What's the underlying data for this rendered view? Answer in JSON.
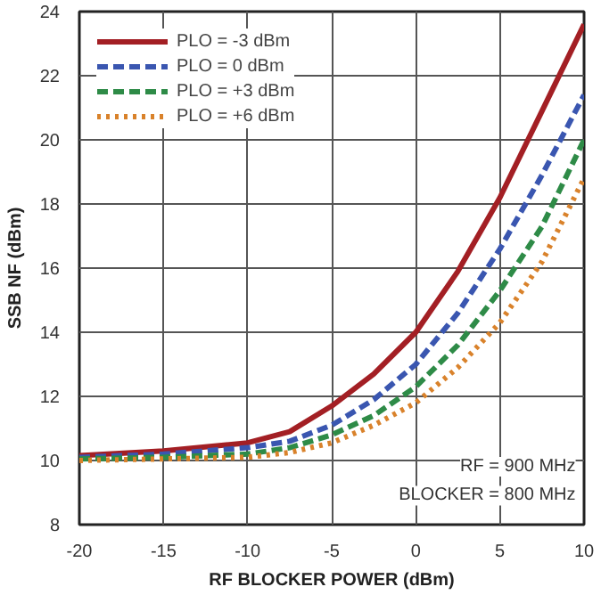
{
  "chart_data": {
    "type": "line",
    "xlabel": "RF BLOCKER POWER (dBm)",
    "ylabel": "SSB NF (dBm)",
    "xlim": [
      -20,
      10
    ],
    "xticks": [
      -20,
      -15,
      -10,
      -5,
      0,
      5,
      10
    ],
    "ylim": [
      8,
      24
    ],
    "yticks": [
      8,
      10,
      12,
      14,
      16,
      18,
      20,
      22,
      24
    ],
    "grid": true,
    "legend": "top left",
    "marker": "none",
    "annotations": [
      "RF = 900 MHz",
      "BLOCKER = 800 MHz"
    ],
    "x": [
      -20,
      -15,
      -10,
      -7.5,
      -5,
      -2.5,
      0,
      2.5,
      5,
      7.5,
      10
    ],
    "series": [
      {
        "name": "PLO = -3 dBm",
        "color": "#a31f24",
        "line_style": "solid",
        "values": [
          10.15,
          10.3,
          10.55,
          10.9,
          11.7,
          12.7,
          14.0,
          15.9,
          18.2,
          20.9,
          23.6
        ]
      },
      {
        "name": "PLO = 0 dBm",
        "color": "#3a56b0",
        "line_style": "dashed",
        "values": [
          10.1,
          10.2,
          10.4,
          10.6,
          11.1,
          11.9,
          13.0,
          14.6,
          16.6,
          18.9,
          21.4
        ]
      },
      {
        "name": "PLO = +3 dBm",
        "color": "#2e8b47",
        "line_style": "dashed",
        "values": [
          10.05,
          10.1,
          10.2,
          10.4,
          10.8,
          11.4,
          12.3,
          13.6,
          15.3,
          17.3,
          20.0
        ]
      },
      {
        "name": "PLO = +6 dBm",
        "color": "#d9822b",
        "line_style": "dotted",
        "values": [
          10.0,
          10.05,
          10.1,
          10.25,
          10.55,
          11.1,
          11.8,
          12.9,
          14.3,
          16.2,
          18.8
        ]
      }
    ]
  }
}
